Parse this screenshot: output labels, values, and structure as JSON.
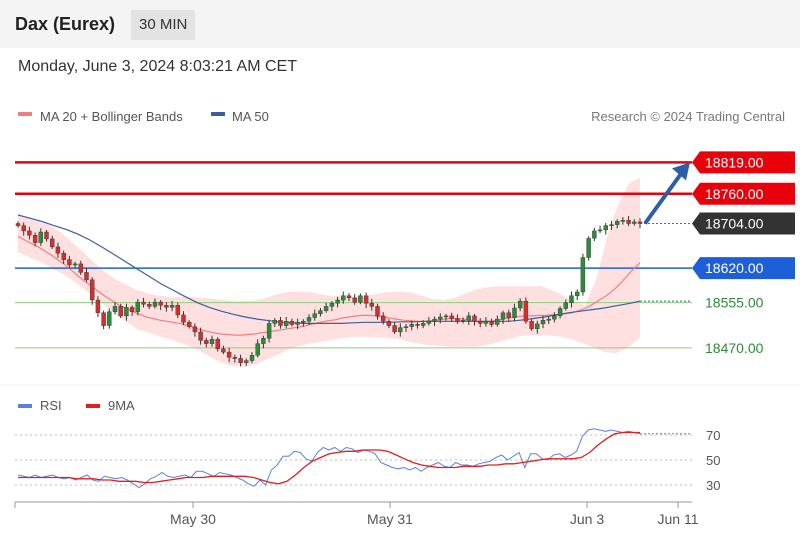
{
  "header": {
    "title": "Dax (Eurex)",
    "interval": "30 MIN"
  },
  "timestamp": "Monday, June 3, 2024 8:03:21 AM CET",
  "legend": {
    "ma20": "MA 20 + Bollinger Bands",
    "ma50": "MA 50",
    "rsi": "RSI",
    "rsi_ma": "9MA"
  },
  "credit": "Research © 2024 Trading Central",
  "colors": {
    "resistance": "#e8000b",
    "pivot": "#1e5fd8",
    "support": "#8ccf7e",
    "candle_up": "#2e8b3a",
    "candle_down": "#d32f2f",
    "ma20": "#f08080",
    "ma50": "#3a5fa0",
    "band": "#ffd6d6",
    "rsi": "#5a80e0",
    "rsi_ma": "#e02020"
  },
  "chart_data": [
    {
      "type": "candlestick",
      "title": "Dax (Eurex)",
      "interval": "30 MIN",
      "x_ticks": [
        "May 30",
        "May 31",
        "Jun 3",
        "Jun 11"
      ],
      "y_range": [
        18400,
        18880
      ],
      "levels": [
        {
          "value": 18819.0,
          "label": "18819.00",
          "kind": "resistance"
        },
        {
          "value": 18760.0,
          "label": "18760.00",
          "kind": "resistance"
        },
        {
          "value": 18704.0,
          "label": "18704.00",
          "kind": "last"
        },
        {
          "value": 18620.0,
          "label": "18620.00",
          "kind": "pivot"
        },
        {
          "value": 18555.0,
          "label": "18555.00",
          "kind": "support"
        },
        {
          "value": 18470.0,
          "label": "18470.00",
          "kind": "support"
        }
      ],
      "close": [
        18700,
        18690,
        18682,
        18668,
        18688,
        18675,
        18660,
        18648,
        18636,
        18626,
        18628,
        18612,
        18598,
        18560,
        18536,
        18512,
        18538,
        18548,
        18530,
        18546,
        18538,
        18556,
        18552,
        18548,
        18556,
        18550,
        18546,
        18550,
        18532,
        18518,
        18510,
        18500,
        18484,
        18478,
        18486,
        18468,
        18462,
        18452,
        18450,
        18442,
        18446,
        18456,
        18478,
        18488,
        18516,
        18522,
        18512,
        18520,
        18514,
        18518,
        18520,
        18527,
        18534,
        18540,
        18548,
        18554,
        18560,
        18568,
        18564,
        18556,
        18568,
        18554,
        18548,
        18530,
        18520,
        18512,
        18500,
        18508,
        18510,
        18514,
        18512,
        18516,
        18520,
        18524,
        18528,
        18530,
        18525,
        18520,
        18522,
        18530,
        18520,
        18516,
        18520,
        18514,
        18524,
        18536,
        18527,
        18545,
        18558,
        18520,
        18506,
        18515,
        18522,
        18524,
        18530,
        18544,
        18555,
        18568,
        18575,
        18640,
        18676,
        18690,
        18692,
        18700,
        18702,
        18708,
        18710,
        18704,
        18707,
        18704
      ],
      "ma20": [
        18680,
        18673,
        18666,
        18660,
        18652,
        18644,
        18635,
        18626,
        18615,
        18604,
        18594,
        18585,
        18575,
        18566,
        18558,
        18550,
        18544,
        18538,
        18533,
        18528,
        18525,
        18522,
        18520,
        18518,
        18516,
        18512,
        18508,
        18504,
        18501,
        18498,
        18496,
        18495,
        18494,
        18494,
        18495,
        18496,
        18498,
        18500,
        18502,
        18504,
        18506,
        18508,
        18510,
        18513,
        18516,
        18519,
        18521,
        18523,
        18526,
        18528,
        18530,
        18531,
        18531,
        18530,
        18528,
        18526,
        18524,
        18522,
        18521,
        18520,
        18520,
        18521,
        18522,
        18524,
        18525,
        18525,
        18524,
        18522,
        18520,
        18519,
        18520,
        18522,
        18525,
        18527,
        18529,
        18530,
        18530,
        18531,
        18531,
        18532,
        18533,
        18534,
        18536,
        18540,
        18545,
        18552,
        18560,
        18568,
        18578,
        18590,
        18604,
        18618,
        18630
      ],
      "ma50": [
        18720,
        18714,
        18708,
        18700,
        18693,
        18684,
        18673,
        18660,
        18646,
        18632,
        18618,
        18604,
        18590,
        18578,
        18566,
        18555,
        18546,
        18539,
        18533,
        18528,
        18524,
        18521,
        18518,
        18517,
        18516,
        18516,
        18516,
        18516,
        18517,
        18518,
        18518,
        18518,
        18519,
        18519,
        18520,
        18520,
        18520,
        18520,
        18520,
        18520,
        18520,
        18520,
        18522,
        18525,
        18528,
        18532,
        18536,
        18539,
        18542,
        18545,
        18549,
        18553,
        18558
      ],
      "bollinger_upper": [
        18720,
        18715,
        18710,
        18700,
        18686,
        18668,
        18650,
        18630,
        18612,
        18598,
        18588,
        18578,
        18572,
        18568,
        18566,
        18566,
        18566,
        18564,
        18562,
        18560,
        18558,
        18558,
        18560,
        18566,
        18572,
        18576,
        18576,
        18574,
        18570,
        18567,
        18566,
        18566,
        18568,
        18572,
        18575,
        18576,
        18574,
        18568,
        18562,
        18560,
        18564,
        18572,
        18580,
        18584,
        18586,
        18586,
        18586,
        18586,
        18586,
        18578,
        18568,
        18556,
        18550,
        18600,
        18680,
        18740,
        18780,
        18790
      ],
      "bollinger_lower": [
        18650,
        18640,
        18630,
        18618,
        18606,
        18590,
        18572,
        18554,
        18536,
        18520,
        18505,
        18498,
        18490,
        18484,
        18476,
        18466,
        18454,
        18442,
        18436,
        18434,
        18440,
        18450,
        18460,
        18470,
        18476,
        18480,
        18484,
        18488,
        18490,
        18491,
        18490,
        18488,
        18486,
        18480,
        18476,
        18474,
        18472,
        18472,
        18472,
        18474,
        18480,
        18486,
        18492,
        18494,
        18494,
        18492,
        18488,
        18480,
        18472,
        18462,
        18460,
        18470,
        18490
      ]
    },
    {
      "type": "line",
      "title": "RSI",
      "y_ticks": [
        30,
        50,
        70
      ],
      "levels": [
        30,
        50,
        70
      ],
      "series": [
        {
          "name": "RSI",
          "values": [
            38,
            37,
            36,
            38,
            36,
            37,
            38,
            36,
            35,
            36,
            34,
            36,
            38,
            34,
            33,
            37,
            36,
            35,
            36,
            34,
            31,
            28,
            31,
            35,
            37,
            40,
            37,
            36,
            37,
            38,
            36,
            41,
            41,
            39,
            37,
            40,
            39,
            38,
            36,
            34,
            31,
            29,
            34,
            30,
            42,
            46,
            53,
            53,
            57,
            56,
            51,
            49,
            56,
            60,
            58,
            60,
            57,
            60,
            59,
            56,
            58,
            57,
            55,
            48,
            46,
            44,
            43,
            44,
            42,
            44,
            41,
            44,
            46,
            48,
            45,
            44,
            48,
            46,
            46,
            45,
            47,
            48,
            49,
            52,
            54,
            50,
            53,
            56,
            44,
            55,
            55,
            51,
            50,
            54,
            55,
            52,
            54,
            57,
            69,
            74,
            75,
            74,
            73,
            74,
            73,
            72,
            73,
            72,
            71
          ]
        },
        {
          "name": "9MA",
          "values": [
            36,
            36,
            36,
            36,
            36,
            36,
            36,
            35,
            35,
            35,
            34,
            34,
            33,
            33,
            33,
            32,
            32,
            33,
            34,
            35,
            36,
            36,
            36,
            37,
            37,
            37,
            37,
            37,
            36,
            34,
            32,
            31,
            33,
            38,
            44,
            49,
            52,
            55,
            56,
            57,
            57,
            58,
            58,
            58,
            57,
            54,
            51,
            48,
            46,
            45,
            44,
            44,
            44,
            45,
            45,
            45,
            46,
            46,
            47,
            47,
            48,
            49,
            50,
            51,
            51,
            51,
            51,
            52,
            56,
            62,
            67,
            71,
            72,
            72,
            72
          ]
        }
      ]
    }
  ]
}
